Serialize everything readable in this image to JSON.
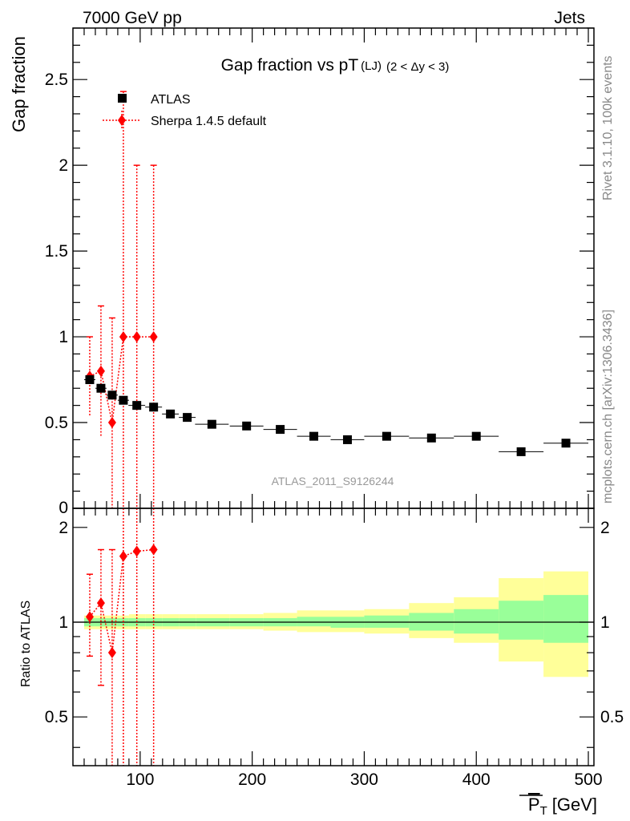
{
  "header": {
    "left": "7000 GeV pp",
    "right": "Jets",
    "side_top": "Rivet 3.1.10,  100k events",
    "side_bottom": "mcplots.cern.ch [arXiv:1306.3436]"
  },
  "chart_data": [
    {
      "type": "scatter",
      "title_main": "Gap fraction vs pT",
      "title_sub": "(LJ)",
      "title_cond": "(2 < Δy < 3)",
      "ylabel": "Gap fraction",
      "analysis": "ATLAS_2011_S9126244",
      "xlim": [
        40,
        505
      ],
      "ylim": [
        0,
        2.8
      ],
      "yticks": [
        0.5,
        1,
        1.5,
        2,
        2.5
      ],
      "ytick_labels": [
        "0.5",
        "1",
        "1.5",
        "2",
        "2.5"
      ],
      "ytick_zero_label": "0",
      "legend": {
        "position": "top-left",
        "entries": [
          "ATLAS",
          "Sherpa 1.4.5 default"
        ]
      },
      "series": [
        {
          "name": "ATLAS",
          "color": "#000000",
          "x": [
            55,
            65,
            75,
            85,
            97,
            112,
            127,
            142,
            164,
            195,
            225,
            255,
            285,
            320,
            360,
            400,
            440,
            480
          ],
          "y": [
            0.75,
            0.7,
            0.66,
            0.63,
            0.6,
            0.59,
            0.55,
            0.53,
            0.49,
            0.48,
            0.46,
            0.42,
            0.4,
            0.42,
            0.41,
            0.42,
            0.33,
            0.38
          ],
          "xerr": [
            5,
            5,
            5,
            5,
            7.5,
            7.5,
            7.5,
            7.5,
            15,
            15,
            15,
            15,
            15,
            20,
            20,
            20,
            20,
            20
          ]
        },
        {
          "name": "Sherpa 1.4.5 default",
          "color": "#ff0000",
          "x": [
            55,
            65,
            75,
            85,
            97,
            112
          ],
          "y": [
            0.77,
            0.8,
            0.5,
            1.0,
            1.0,
            1.0
          ],
          "ylo": [
            0.54,
            0.42,
            0.0,
            0.0,
            0.0,
            0.0
          ],
          "yhi": [
            1.0,
            1.18,
            1.11,
            2.43,
            2.0,
            2.0
          ]
        }
      ]
    },
    {
      "type": "scatter",
      "ylabel": "Ratio to ATLAS",
      "xlabel": "P_T [GeV]",
      "xlabel_main": "P",
      "xlabel_sub": "T",
      "xlabel_unit": "[GeV]",
      "xlim": [
        40,
        505
      ],
      "ylim": [
        0.35,
        2.3
      ],
      "ylog": true,
      "yticks": [
        0.5,
        1,
        2
      ],
      "ytick_labels": [
        "0.5",
        "1",
        "2"
      ],
      "xticks": [
        100,
        200,
        300,
        400,
        500
      ],
      "xtick_labels": [
        "100",
        "200",
        "300",
        "400",
        "500"
      ],
      "reference_line": 1,
      "bands": {
        "edges": [
          50,
          60,
          70,
          80,
          90,
          105,
          120,
          135,
          150,
          180,
          210,
          240,
          270,
          300,
          340,
          380,
          420,
          460,
          500
        ],
        "inner_lo": [
          0.97,
          0.97,
          0.97,
          0.97,
          0.97,
          0.97,
          0.97,
          0.97,
          0.97,
          0.97,
          0.97,
          0.97,
          0.96,
          0.96,
          0.94,
          0.92,
          0.88,
          0.86
        ],
        "inner_hi": [
          1.03,
          1.03,
          1.03,
          1.03,
          1.03,
          1.03,
          1.03,
          1.03,
          1.03,
          1.03,
          1.03,
          1.04,
          1.04,
          1.05,
          1.07,
          1.1,
          1.17,
          1.22
        ],
        "outer_lo": [
          0.95,
          0.95,
          0.95,
          0.95,
          0.95,
          0.95,
          0.95,
          0.95,
          0.95,
          0.95,
          0.94,
          0.93,
          0.93,
          0.92,
          0.89,
          0.86,
          0.75,
          0.67
        ],
        "outer_hi": [
          1.05,
          1.05,
          1.05,
          1.05,
          1.06,
          1.06,
          1.06,
          1.06,
          1.06,
          1.06,
          1.07,
          1.09,
          1.09,
          1.1,
          1.15,
          1.2,
          1.38,
          1.45
        ],
        "inner_color": "#99ff99",
        "outer_color": "#ffff99"
      },
      "series": [
        {
          "name": "Sherpa 1.4.5 default",
          "color": "#ff0000",
          "x": [
            55,
            65,
            75,
            85,
            97,
            112
          ],
          "y": [
            1.04,
            1.15,
            0.8,
            1.62,
            1.68,
            1.7
          ],
          "ylo": [
            0.78,
            0.63,
            0.0,
            0.0,
            0.0,
            0.0
          ],
          "yhi": [
            1.42,
            1.7,
            1.7,
            3.0,
            3.0,
            3.0
          ]
        }
      ]
    }
  ]
}
